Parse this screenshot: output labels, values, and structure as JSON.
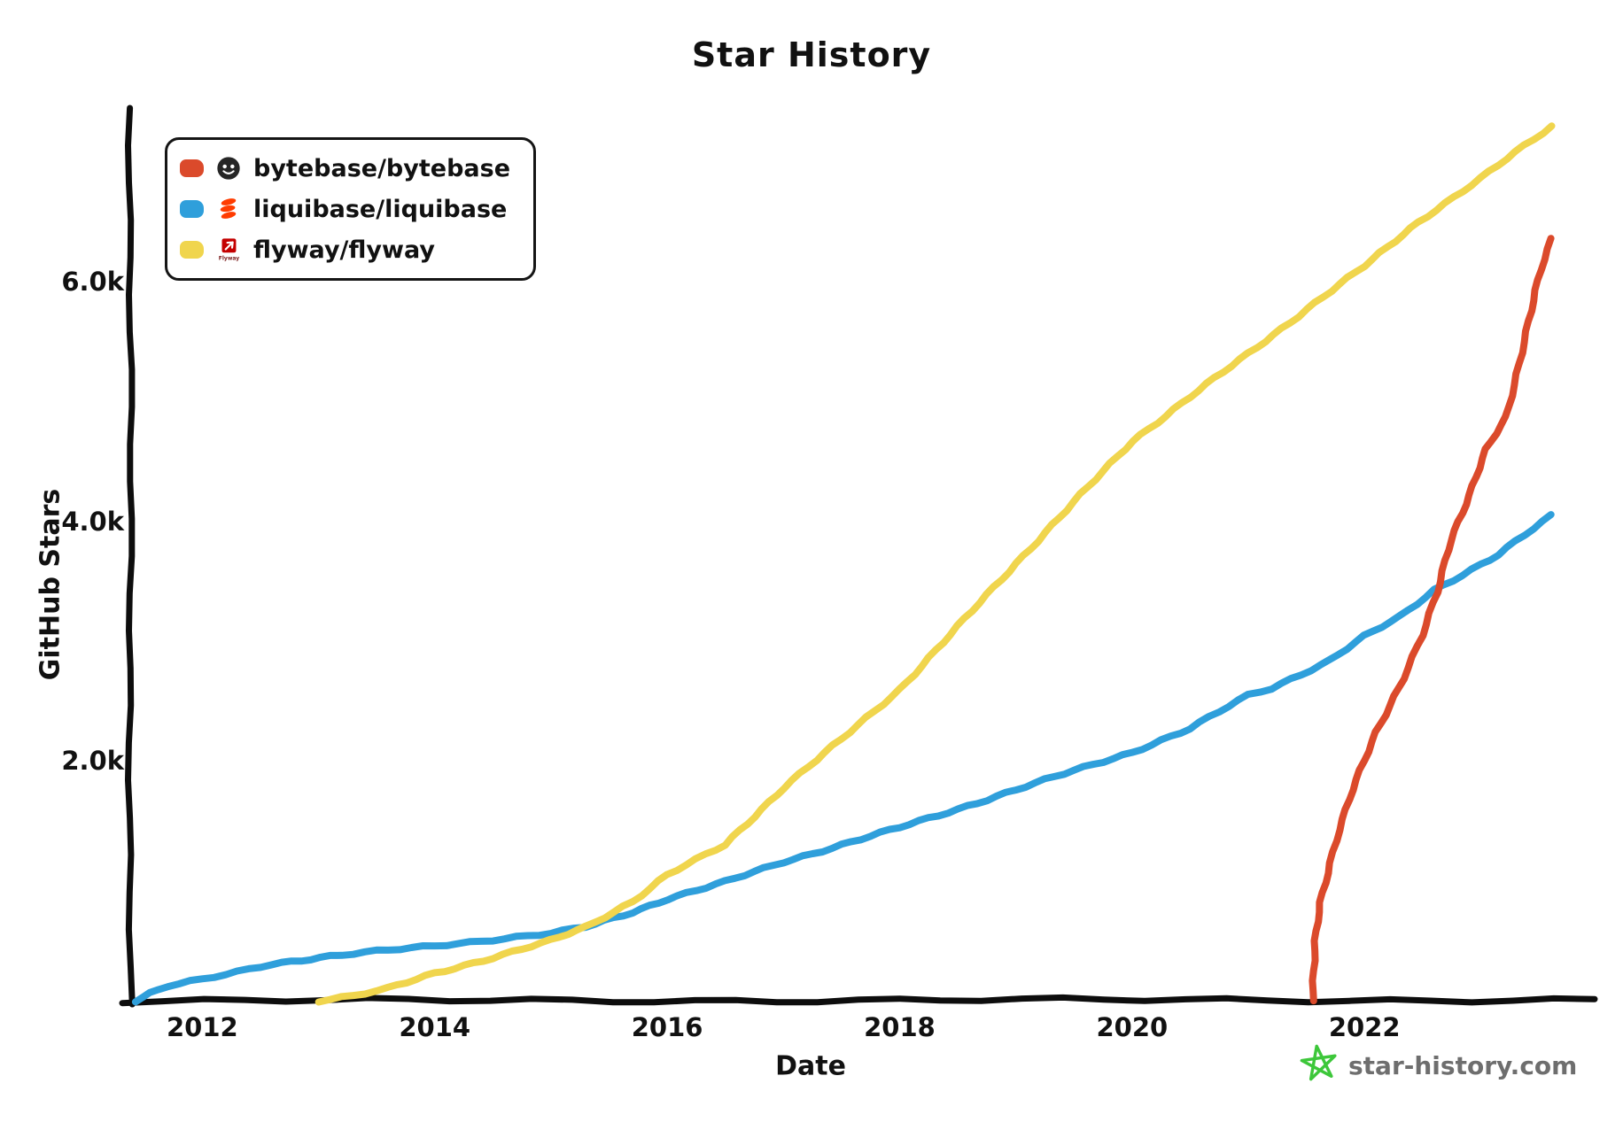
{
  "title": "Star History",
  "legend": {
    "items": [
      {
        "label": "bytebase/bytebase",
        "color": "#DB4A2B",
        "icon": "bytebase-avatar-icon"
      },
      {
        "label": "liquibase/liquibase",
        "color": "#2F9FDB",
        "icon": "liquibase-logo-icon"
      },
      {
        "label": "flyway/flyway",
        "color": "#F0D54D",
        "icon": "flyway-logo-icon"
      }
    ]
  },
  "footer": {
    "site": "star-history.com",
    "star_color": "#3DC73A",
    "text_color": "#6e6e6e"
  },
  "chart_data": {
    "type": "line",
    "title": "Star History",
    "xlabel": "Date",
    "ylabel": "GitHub Stars",
    "grid": false,
    "legend_position": "top-left",
    "xlim": [
      2011.38,
      2023.98
    ],
    "ylim": [
      0,
      7450
    ],
    "x_ticks": [
      2012,
      2014,
      2016,
      2018,
      2020,
      2022
    ],
    "y_ticks": [
      {
        "value": 2000,
        "label": "2.0k"
      },
      {
        "value": 4000,
        "label": "4.0k"
      },
      {
        "value": 6000,
        "label": "6.0k"
      }
    ],
    "series": [
      {
        "name": "bytebase/bytebase",
        "color": "#DB4A2B",
        "points": [
          [
            2021.55,
            0
          ],
          [
            2021.58,
            500
          ],
          [
            2021.62,
            820
          ],
          [
            2021.7,
            1150
          ],
          [
            2021.78,
            1430
          ],
          [
            2021.9,
            1760
          ],
          [
            2022.0,
            2000
          ],
          [
            2022.1,
            2240
          ],
          [
            2022.33,
            2690
          ],
          [
            2022.5,
            3050
          ],
          [
            2022.63,
            3410
          ],
          [
            2022.74,
            3850
          ],
          [
            2022.9,
            4220
          ],
          [
            2023.05,
            4600
          ],
          [
            2023.22,
            4870
          ],
          [
            2023.37,
            5500
          ],
          [
            2023.52,
            6100
          ],
          [
            2023.61,
            6360
          ]
        ]
      },
      {
        "name": "liquibase/liquibase",
        "color": "#2F9FDB",
        "points": [
          [
            2011.42,
            0
          ],
          [
            2011.55,
            60
          ],
          [
            2011.7,
            120
          ],
          [
            2012.0,
            175
          ],
          [
            2012.3,
            240
          ],
          [
            2012.6,
            310
          ],
          [
            2013.1,
            370
          ],
          [
            2013.6,
            420
          ],
          [
            2014.0,
            460
          ],
          [
            2014.5,
            510
          ],
          [
            2015.0,
            560
          ],
          [
            2015.3,
            615
          ],
          [
            2015.7,
            740
          ],
          [
            2016.0,
            850
          ],
          [
            2016.5,
            990
          ],
          [
            2017.0,
            1160
          ],
          [
            2017.5,
            1300
          ],
          [
            2018.0,
            1445
          ],
          [
            2018.5,
            1600
          ],
          [
            2019.0,
            1760
          ],
          [
            2019.5,
            1920
          ],
          [
            2020.0,
            2075
          ],
          [
            2020.5,
            2270
          ],
          [
            2021.0,
            2550
          ],
          [
            2021.2,
            2610
          ],
          [
            2021.7,
            2840
          ],
          [
            2022.0,
            3040
          ],
          [
            2022.3,
            3200
          ],
          [
            2022.6,
            3430
          ],
          [
            2023.0,
            3640
          ],
          [
            2023.15,
            3720
          ],
          [
            2023.61,
            4050
          ]
        ]
      },
      {
        "name": "flyway/flyway",
        "color": "#F0D54D",
        "points": [
          [
            2013.0,
            0
          ],
          [
            2013.3,
            40
          ],
          [
            2013.6,
            100
          ],
          [
            2014.0,
            230
          ],
          [
            2014.5,
            360
          ],
          [
            2015.0,
            500
          ],
          [
            2015.3,
            615
          ],
          [
            2015.7,
            830
          ],
          [
            2016.0,
            1050
          ],
          [
            2016.5,
            1300
          ],
          [
            2017.0,
            1780
          ],
          [
            2017.5,
            2180
          ],
          [
            2018.0,
            2600
          ],
          [
            2018.5,
            3120
          ],
          [
            2019.0,
            3650
          ],
          [
            2019.5,
            4160
          ],
          [
            2020.0,
            4670
          ],
          [
            2020.5,
            5040
          ],
          [
            2021.0,
            5400
          ],
          [
            2021.5,
            5770
          ],
          [
            2022.0,
            6130
          ],
          [
            2022.46,
            6500
          ],
          [
            2023.0,
            6860
          ],
          [
            2023.3,
            7080
          ],
          [
            2023.61,
            7300
          ]
        ]
      }
    ]
  }
}
